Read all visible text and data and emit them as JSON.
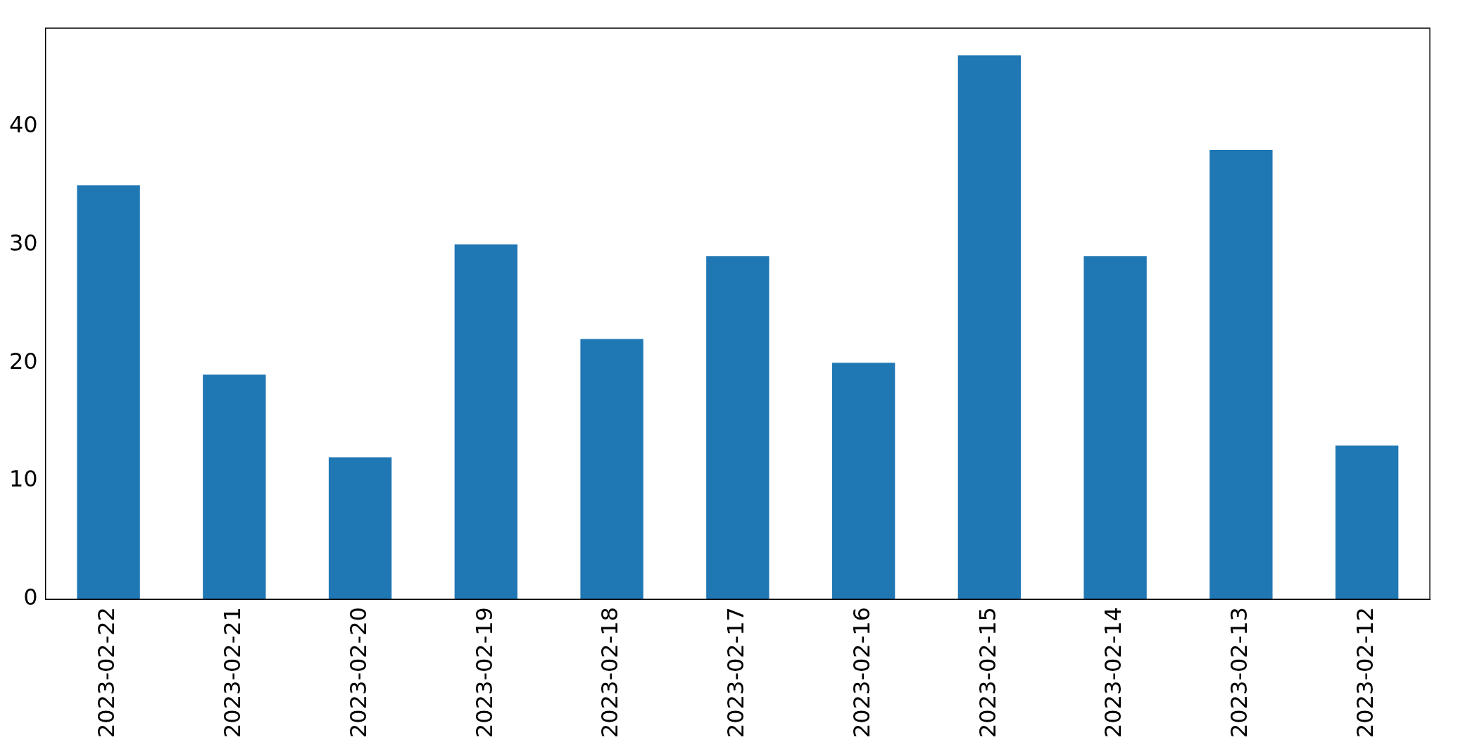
{
  "chart_data": {
    "type": "bar",
    "categories": [
      "2023-02-22",
      "2023-02-21",
      "2023-02-20",
      "2023-02-19",
      "2023-02-18",
      "2023-02-17",
      "2023-02-16",
      "2023-02-15",
      "2023-02-14",
      "2023-02-13",
      "2023-02-12"
    ],
    "values": [
      35,
      19,
      12,
      30,
      22,
      29,
      20,
      46,
      29,
      38,
      13
    ],
    "color": "#1f77b4",
    "ylim": [
      0,
      48.3
    ],
    "yticks": [
      0,
      10,
      20,
      30,
      40
    ],
    "grid": false,
    "legend": false
  }
}
